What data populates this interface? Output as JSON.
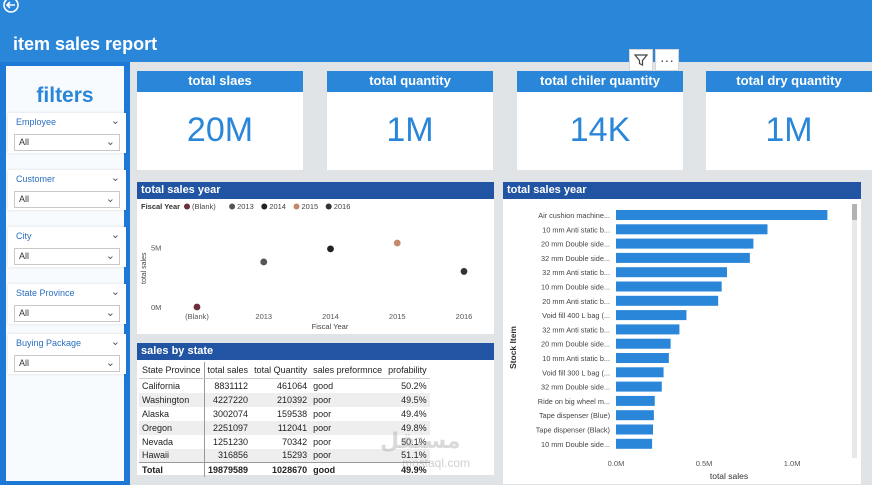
{
  "report": {
    "title": "item sales report"
  },
  "toolbar": {
    "filter_icon": "filter-icon",
    "more_label": "···"
  },
  "filters": {
    "title": "filters",
    "slicers": [
      {
        "label": "Employee",
        "value": "All"
      },
      {
        "label": "Customer",
        "value": "All"
      },
      {
        "label": "City",
        "value": "All"
      },
      {
        "label": "State Province",
        "value": "All"
      },
      {
        "label": "Buying Package",
        "value": "All"
      }
    ]
  },
  "cards": [
    {
      "title": "total slaes",
      "value": "20M"
    },
    {
      "title": "total quantity",
      "value": "1M"
    },
    {
      "title": "total chiler quantity",
      "value": "14K"
    },
    {
      "title": "total dry quantity",
      "value": "1M"
    }
  ],
  "scatter_panel": {
    "title": "total sales year"
  },
  "bar_panel": {
    "title": "total sales year"
  },
  "table_panel": {
    "title": "sales by state",
    "columns": [
      "State Province",
      "total sales",
      "total Quantity",
      "sales preformnce",
      "profability"
    ],
    "rows": [
      [
        "California",
        "8831112",
        "461064",
        "good",
        "50.2%"
      ],
      [
        "Washington",
        "4227220",
        "210392",
        "poor",
        "49.5%"
      ],
      [
        "Alaska",
        "3002074",
        "159538",
        "poor",
        "49.4%"
      ],
      [
        "Oregon",
        "2251097",
        "112041",
        "poor",
        "49.8%"
      ],
      [
        "Nevada",
        "1251230",
        "70342",
        "poor",
        "50.1%"
      ],
      [
        "Hawaii",
        "316856",
        "15293",
        "poor",
        "51.1%"
      ]
    ],
    "total": [
      "Total",
      "19879589",
      "1028670",
      "good",
      "49.9%"
    ]
  },
  "chart_data": [
    {
      "type": "scatter",
      "title": "total sales year",
      "legend_title": "Fiscal Year",
      "legend": [
        {
          "name": "(Blank)",
          "color": "#6b2e3a"
        },
        {
          "name": "2013",
          "color": "#555555"
        },
        {
          "name": "2014",
          "color": "#222222"
        },
        {
          "name": "2015",
          "color": "#c4886a"
        },
        {
          "name": "2016",
          "color": "#333333"
        }
      ],
      "legend_position": "top-left",
      "categories": [
        "(Blank)",
        "2013",
        "2014",
        "2015",
        "2016"
      ],
      "values": [
        0,
        3800000,
        4900000,
        5400000,
        3000000
      ],
      "colors": [
        "#6b2e3a",
        "#555555",
        "#222222",
        "#c4886a",
        "#333333"
      ],
      "xlabel": "Fiscal Year",
      "ylabel": "total sales",
      "yticks": [
        "0M",
        "5M"
      ],
      "ylim": [
        0,
        7000000
      ]
    },
    {
      "type": "bar",
      "orientation": "horizontal",
      "title": "total sales year",
      "categories": [
        "Air cushion machine...",
        "10 mm Anti static b...",
        "20 mm Double side...",
        "32 mm Double side...",
        "32 mm Anti static b...",
        "10 mm Double side...",
        "20 mm Anti static b...",
        "Void fill 400 L bag (...",
        "32 mm Anti static b...",
        "20 mm Double side...",
        "10 mm Anti static b...",
        "Void fill 300 L bag (...",
        "32 mm Double side...",
        "Ride on big wheel m...",
        "Tape dispenser (Blue)",
        "Tape dispenser (Black)",
        "10 mm Double side..."
      ],
      "values": [
        1200000,
        860000,
        780000,
        760000,
        630000,
        600000,
        580000,
        400000,
        360000,
        310000,
        300000,
        270000,
        260000,
        220000,
        215000,
        210000,
        205000
      ],
      "xlabel": "total sales",
      "ylabel": "Stock Item",
      "xticks": [
        "0.0M",
        "0.5M",
        "1.0M"
      ],
      "xlim": [
        0,
        1300000
      ],
      "color": "#2a86d9"
    }
  ],
  "watermark": {
    "main": "مستقل",
    "sub": "mostaql.com"
  }
}
